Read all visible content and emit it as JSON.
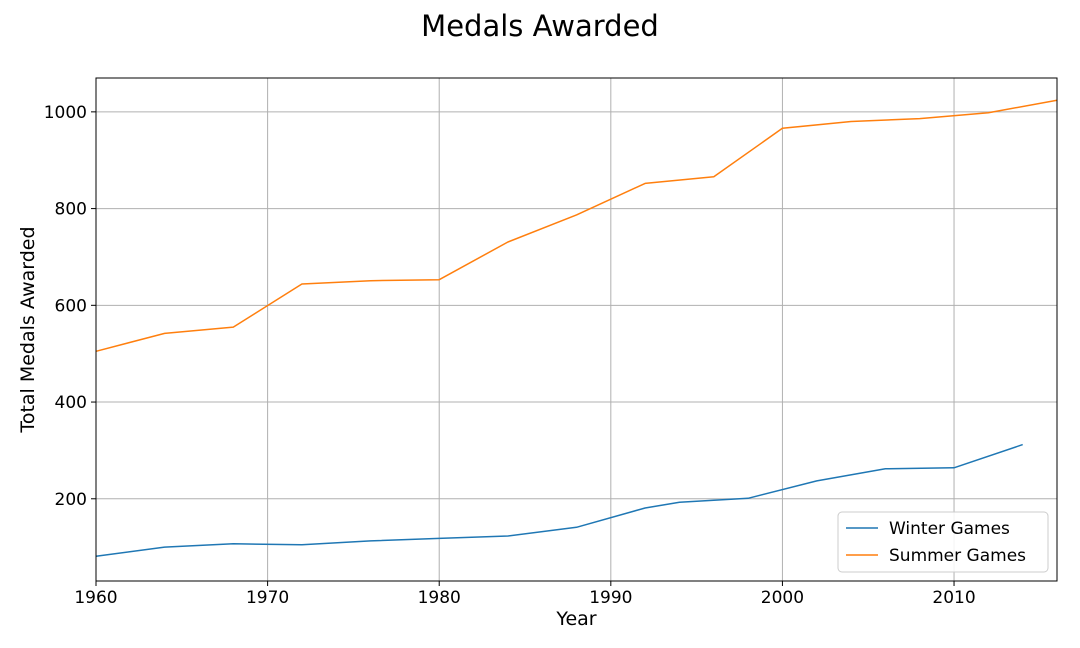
{
  "chart_data": {
    "type": "line",
    "title": "Medals Awarded",
    "xlabel": "Year",
    "ylabel": "Total Medals Awarded",
    "xlim": [
      1960,
      2016
    ],
    "ylim": [
      30,
      1070
    ],
    "xticks": [
      1960,
      1970,
      1980,
      1990,
      2000,
      2010
    ],
    "yticks": [
      200,
      400,
      600,
      800,
      1000
    ],
    "grid": true,
    "legend_position": "bottom-right",
    "series": [
      {
        "name": "Winter Games",
        "color": "#1f77b4",
        "x": [
          1960,
          1964,
          1968,
          1972,
          1976,
          1980,
          1984,
          1988,
          1992,
          1994,
          1998,
          2002,
          2006,
          2010,
          2014
        ],
        "y": [
          81,
          100,
          107,
          105,
          113,
          118,
          123,
          141,
          181,
          193,
          201,
          237,
          262,
          264,
          312
        ]
      },
      {
        "name": "Summer Games",
        "color": "#ff7f0e",
        "x": [
          1960,
          1964,
          1968,
          1972,
          1976,
          1980,
          1984,
          1988,
          1992,
          1996,
          2000,
          2004,
          2008,
          2012,
          2016
        ],
        "y": [
          505,
          542,
          555,
          644,
          651,
          653,
          731,
          787,
          852,
          866,
          966,
          980,
          986,
          998,
          1024
        ]
      }
    ]
  }
}
